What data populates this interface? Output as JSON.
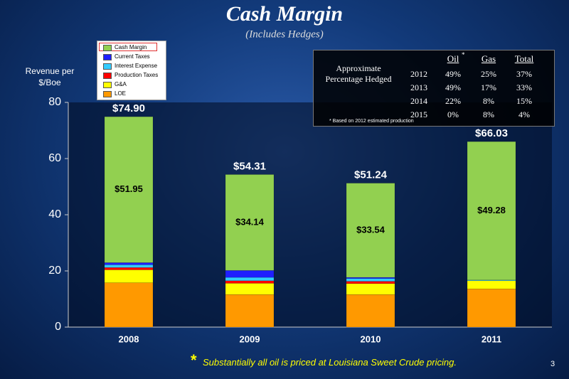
{
  "chart_data": {
    "type": "stacked-bar",
    "title": "Cash Margin",
    "subtitle": "(Includes Hedges)",
    "y_label": "Revenue per $/Boe",
    "categories": [
      "2008",
      "2009",
      "2010",
      "2011"
    ],
    "series": [
      {
        "name": "LOE",
        "color": "#ff9900",
        "values": [
          15.8,
          11.6,
          11.6,
          13.6
        ]
      },
      {
        "name": "G&A",
        "color": "#ffff00",
        "values": [
          4.6,
          4.0,
          3.9,
          2.9
        ]
      },
      {
        "name": "Production Taxes",
        "color": "#ff0000",
        "values": [
          0.8,
          0.9,
          0.8,
          0
        ]
      },
      {
        "name": "Interest Expense",
        "color": "#33ccff",
        "values": [
          1.0,
          1.2,
          1.0,
          0.25
        ]
      },
      {
        "name": "Current Taxes",
        "color": "#1f1fff",
        "values": [
          0.75,
          2.47,
          0.4,
          0
        ]
      },
      {
        "name": "Cash Margin",
        "color": "#92d050",
        "values": [
          51.95,
          34.14,
          33.54,
          49.28
        ],
        "value_labels": [
          "$51.95",
          "$34.14",
          "$33.54",
          "$49.28"
        ]
      }
    ],
    "totals": [
      74.9,
      54.31,
      51.24,
      66.03
    ],
    "total_labels": [
      "$74.90",
      "$54.31",
      "$51.24",
      "$66.03"
    ],
    "ylim": [
      0,
      80
    ],
    "yticks": [
      0,
      20,
      40,
      60,
      80
    ],
    "grid": false
  },
  "hedge_table": {
    "label": "Approximate Percentage Hedged",
    "columns": [
      "Oil",
      "Gas",
      "Total"
    ],
    "column_marker": "*",
    "rows": [
      [
        "2012",
        "49%",
        "25%",
        "37%"
      ],
      [
        "2013",
        "49%",
        "17%",
        "33%"
      ],
      [
        "2014",
        "22%",
        "8%",
        "15%"
      ],
      [
        "2015",
        "0%",
        "8%",
        "4%"
      ]
    ],
    "footnote": "* Based on 2012 estimated production"
  },
  "footer": {
    "marker": "*",
    "note": "Substantially all oil is priced at Louisiana Sweet Crude pricing.",
    "page_number": "3"
  }
}
